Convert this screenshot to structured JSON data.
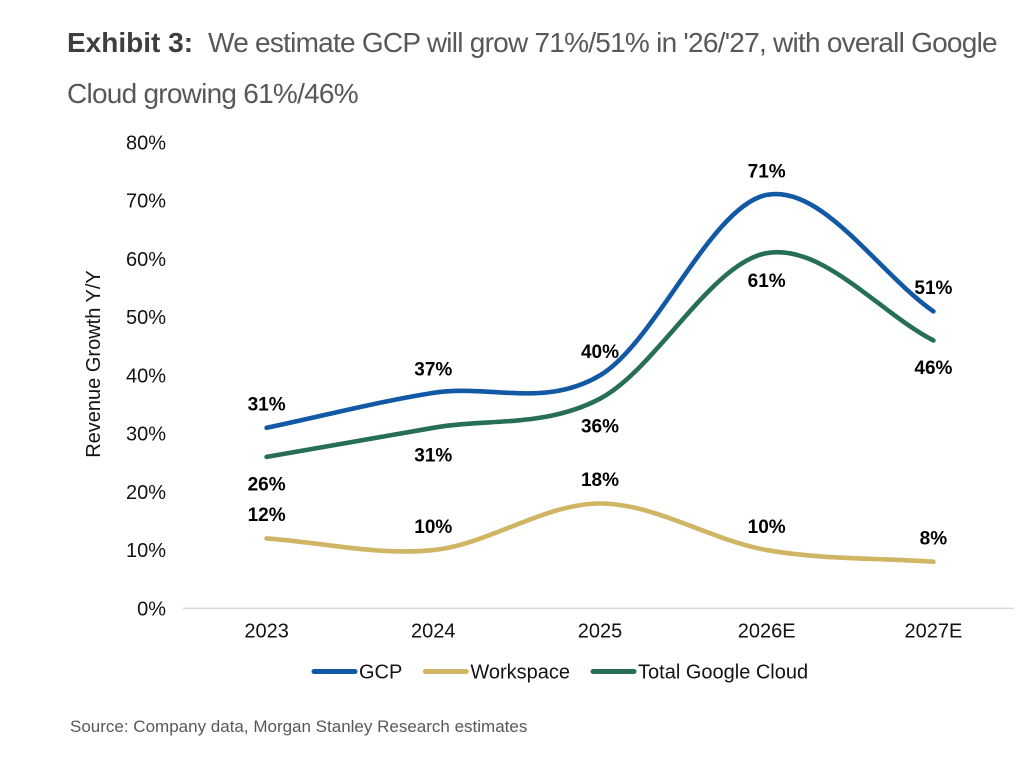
{
  "title": {
    "exhibit_label": "Exhibit 3:",
    "caption": "We estimate GCP will grow 71%/51% in '26/'27, with overall Google Cloud growing 61%/46%"
  },
  "source_note": "Source: Company data, Morgan Stanley Research estimates",
  "colors": {
    "gcp_blue": "#1159a4",
    "workspace_tan": "#cfb564",
    "total_cloud_green": "#266e56",
    "axis_line": "#d8d8d8",
    "tick_text": "#131313",
    "data_label_text": "#000000",
    "title_bold": "#3e3e40",
    "title_regular": "#57585a"
  },
  "chart_data": {
    "type": "line",
    "title": "We estimate GCP will grow 71%/51% in '26/'27, with overall Google Cloud growing 61%/46%",
    "xlabel": "",
    "ylabel": "Revenue Growth Y/Y",
    "categories": [
      "2023",
      "2024",
      "2025",
      "2026E",
      "2027E"
    ],
    "y_tick_labels": [
      "0%",
      "10%",
      "20%",
      "30%",
      "40%",
      "50%",
      "60%",
      "70%",
      "80%"
    ],
    "ylim": [
      0,
      80
    ],
    "y_tick_step": 10,
    "grid": false,
    "legend_position": "bottom",
    "line_style": "smooth",
    "series": [
      {
        "name": "GCP",
        "color": "#1159a4",
        "values": [
          31,
          37,
          40,
          71,
          51
        ],
        "point_labels": [
          "31%",
          "37%",
          "40%",
          "71%",
          "51%"
        ],
        "label_position": "above"
      },
      {
        "name": "Workspace",
        "color": "#cfb564",
        "values": [
          12,
          10,
          18,
          10,
          8
        ],
        "point_labels": [
          "12%",
          "10%",
          "18%",
          "10%",
          "8%"
        ],
        "label_position": "above"
      },
      {
        "name": "Total Google Cloud",
        "color": "#266e56",
        "values": [
          26,
          31,
          36,
          61,
          46
        ],
        "point_labels": [
          "26%",
          "31%",
          "36%",
          "61%",
          "46%"
        ],
        "label_position": "below"
      }
    ]
  }
}
